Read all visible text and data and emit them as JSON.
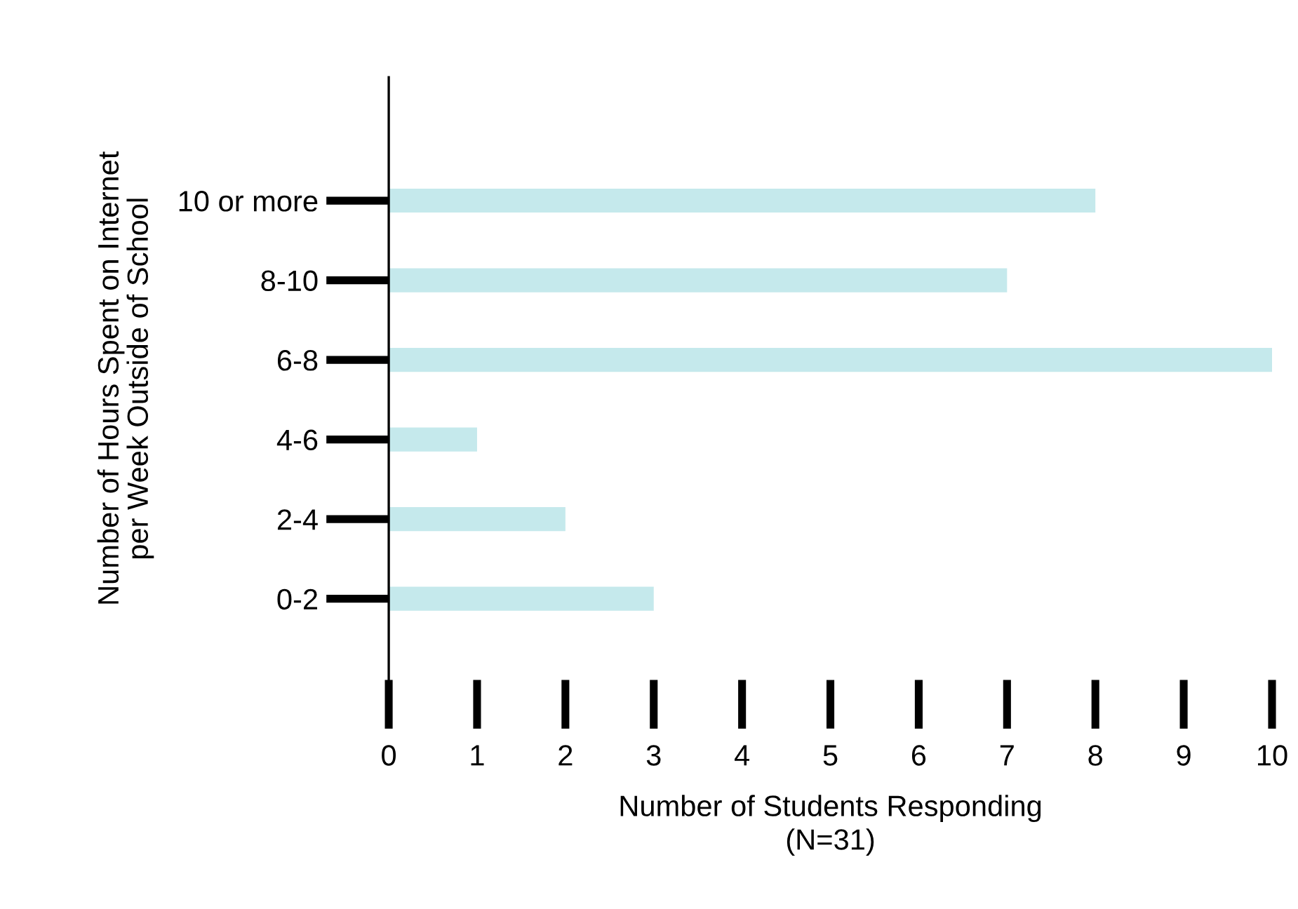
{
  "chart_data": {
    "type": "bar",
    "orientation": "horizontal",
    "categories": [
      "10 or more",
      "8-10",
      "6-8",
      "4-6",
      "2-4",
      "0-2"
    ],
    "values": [
      8,
      7,
      10,
      1,
      2,
      3
    ],
    "color": "#c5e9ec",
    "xlim": [
      0,
      10
    ],
    "xticks": [
      0,
      1,
      2,
      3,
      4,
      5,
      6,
      7,
      8,
      9,
      10
    ],
    "xlabel": "Number of Students Responding\n(N=31)",
    "ylabel": "Number of Hours Spent on Internet\nper Week Outside of School",
    "grid": false
  }
}
